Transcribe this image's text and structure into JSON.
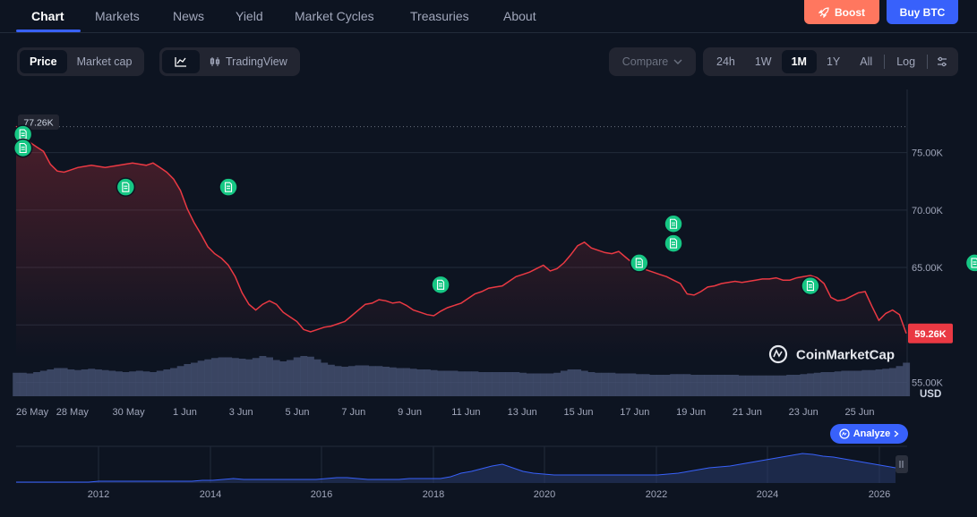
{
  "nav": {
    "tabs": [
      "Chart",
      "Markets",
      "News",
      "Yield",
      "Market Cycles",
      "Treasuries",
      "About"
    ],
    "boost_label": "Boost",
    "buy_label": "Buy BTC"
  },
  "toolbar": {
    "metric_tabs": [
      "Price",
      "Market cap"
    ],
    "tradingview_label": "TradingView",
    "compare_label": "Compare",
    "ranges": [
      "24h",
      "1W",
      "1M",
      "1Y",
      "All"
    ],
    "active_range": "1M",
    "log_label": "Log"
  },
  "watermark": "CoinMarketCap",
  "currency": "USD",
  "analyze_label": "Analyze",
  "colors": {
    "line": "#ea3943",
    "accent": "#3861fb",
    "note": "#16c784",
    "volume": "#4a5578"
  },
  "chart_data": {
    "type": "line",
    "x_ticks": [
      "26 May",
      "28 May",
      "30 May",
      "1 Jun",
      "3 Jun",
      "5 Jun",
      "7 Jun",
      "9 Jun",
      "11 Jun",
      "13 Jun",
      "15 Jun",
      "17 Jun",
      "19 Jun",
      "21 Jun",
      "23 Jun",
      "25 Jun"
    ],
    "y_ticks": [
      "75.00K",
      "70.00K",
      "65.00K",
      "55.00K"
    ],
    "ylim": [
      51300,
      80500
    ],
    "high_label": "77.26K",
    "current_label": "59.26K",
    "high_value": 77260,
    "current_value": 59260,
    "series": [
      {
        "values": [
          77300,
          76700,
          75900,
          75500,
          75100,
          74000,
          73400,
          73300,
          73500,
          73700,
          73800,
          73900,
          73800,
          73700,
          73800,
          73900,
          74000,
          74100,
          74000,
          73900,
          74100,
          73700,
          73300,
          72700,
          71700,
          70100,
          68900,
          67900,
          66800,
          66200,
          65800,
          65200,
          64200,
          62800,
          61800,
          61300,
          61800,
          62100,
          61800,
          61100,
          60700,
          60300,
          59600,
          59400,
          59600,
          59800,
          59900,
          60100,
          60300,
          60800,
          61300,
          61800,
          61900,
          62200,
          62100,
          61900,
          62000,
          61700,
          61300,
          61100,
          60900,
          60800,
          61200,
          61500,
          61700,
          61900,
          62300,
          62700,
          62900,
          63200,
          63300,
          63400,
          63800,
          64200,
          64400,
          64600,
          64900,
          65200,
          64700,
          64900,
          65400,
          66100,
          66900,
          67200,
          66700,
          66500,
          66300,
          66200,
          66400,
          65900,
          65400,
          65100,
          64800,
          64600,
          64400,
          64200,
          63900,
          63600,
          62700,
          62600,
          62900,
          63300,
          63400,
          63600,
          63700,
          63800,
          63700,
          63800,
          63900,
          64000,
          64000,
          64100,
          63900,
          63900,
          64100,
          64200,
          64300,
          64100,
          63600,
          62400,
          62100,
          62200,
          62500,
          62800,
          62900,
          61600,
          60400,
          61000,
          61300,
          60900,
          59260
        ]
      }
    ],
    "volume": [
      35,
      35,
      34,
      36,
      38,
      40,
      42,
      42,
      40,
      39,
      40,
      41,
      40,
      39,
      38,
      37,
      36,
      37,
      38,
      37,
      36,
      38,
      40,
      42,
      45,
      48,
      50,
      53,
      55,
      57,
      58,
      58,
      57,
      56,
      55,
      57,
      60,
      58,
      54,
      52,
      54,
      58,
      60,
      59,
      55,
      50,
      47,
      45,
      44,
      45,
      46,
      46,
      45,
      45,
      44,
      43,
      42,
      42,
      41,
      40,
      40,
      39,
      38,
      38,
      38,
      37,
      37,
      37,
      36,
      36,
      36,
      36,
      36,
      36,
      35,
      34,
      34,
      34,
      34,
      35,
      38,
      40,
      40,
      38,
      36,
      35,
      35,
      35,
      34,
      34,
      34,
      33,
      33,
      32,
      32,
      32,
      33,
      33,
      33,
      32,
      32,
      32,
      32,
      32,
      32,
      32,
      31,
      31,
      31,
      31,
      31,
      31,
      31,
      32,
      32,
      33,
      34,
      35,
      36,
      36,
      37,
      38,
      38,
      38,
      39,
      39,
      40,
      41,
      42,
      45,
      50
    ],
    "notes": [
      {
        "i": 1,
        "v": 76600
      },
      {
        "i": 1,
        "v": 75400
      },
      {
        "i": 16,
        "v": 72000
      },
      {
        "i": 31,
        "v": 72000
      },
      {
        "i": 62,
        "v": 63500
      },
      {
        "i": 91,
        "v": 65400
      },
      {
        "i": 96,
        "v": 67100
      },
      {
        "i": 96,
        "v": 68800
      },
      {
        "i": 116,
        "v": 63400
      },
      {
        "i": 140,
        "v": 65400
      }
    ]
  },
  "mini_chart": {
    "x_ticks": [
      "2012",
      "2014",
      "2016",
      "2018",
      "2020",
      "2022",
      "2024",
      "2026"
    ],
    "values": [
      0,
      0,
      0,
      0,
      0,
      0,
      0,
      0,
      1,
      1,
      1,
      1,
      1,
      1,
      1,
      1,
      1,
      1,
      2,
      2,
      3,
      4,
      3,
      3,
      3,
      3,
      3,
      3,
      3,
      3,
      4,
      5,
      5,
      4,
      3,
      3,
      3,
      3,
      4,
      4,
      4,
      4,
      6,
      10,
      12,
      15,
      18,
      20,
      16,
      12,
      10,
      9,
      8,
      8,
      8,
      8,
      8,
      8,
      8,
      8,
      8,
      8,
      8,
      9,
      10,
      12,
      14,
      16,
      17,
      18,
      20,
      22,
      24,
      26,
      28,
      30,
      32,
      31,
      29,
      28,
      26,
      24,
      22,
      20,
      18,
      16
    ]
  }
}
